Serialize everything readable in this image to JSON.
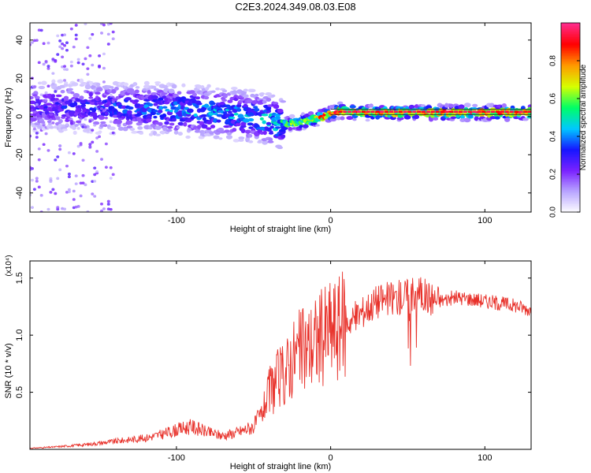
{
  "title": "C2E3.2024.349.08.03.E08",
  "colors": {
    "snr_line": "#e8312a",
    "frame": "#000000",
    "colormap": [
      "#ffffff",
      "#b9a6ff",
      "#7a22ff",
      "#1616ff",
      "#00c8ff",
      "#00ff66",
      "#d6ff00",
      "#ff9a00",
      "#ff0000",
      "#ff2c8c"
    ]
  },
  "chart_data": [
    {
      "type": "heatmap",
      "title": "C2E3.2024.349.08.03.E08",
      "xlabel": "Height of straight line (km)",
      "ylabel": "Frequency (Hz)",
      "xlim": [
        -195,
        130
      ],
      "ylim": [
        -50,
        49
      ],
      "xticks": [
        -100,
        0,
        100
      ],
      "yticks": [
        -40,
        -20,
        0,
        20,
        40
      ],
      "grid": false,
      "ridge": {
        "description_points_x": [
          -190,
          -150,
          -120,
          -90,
          -60,
          -40,
          -30,
          -20,
          -5,
          5,
          20,
          50,
          80,
          100,
          130
        ],
        "center_y": [
          5,
          5,
          4,
          3,
          1,
          -2,
          -4,
          -3,
          0,
          3,
          2,
          2,
          2,
          2,
          2
        ],
        "peak_amplitude": [
          0.3,
          0.35,
          0.4,
          0.45,
          0.45,
          0.5,
          0.55,
          0.75,
          0.85,
          0.95,
          0.85,
          0.8,
          0.85,
          0.9,
          0.85
        ]
      },
      "colorbar": {
        "label": "Normalized spectral amplitude",
        "range": [
          0.0,
          1.0
        ],
        "ticks": [
          "0.0",
          "0.2",
          "0.4",
          "0.6",
          "0.8"
        ]
      }
    },
    {
      "type": "line",
      "xlabel": "Height of straight line (km)",
      "ylabel": "SNR (10 * v/v)",
      "multiplier": "(x10⁴)",
      "xlim": [
        -195,
        130
      ],
      "ylim": [
        0,
        1.65
      ],
      "xticks": [
        -100,
        0,
        100
      ],
      "yticks": [
        0.5,
        1.0,
        1.5
      ],
      "ytick_labels": [
        "0.5",
        "1.0",
        "1.5"
      ],
      "grid": false,
      "series": [
        {
          "x": [
            -195,
            -180,
            -160,
            -140,
            -120,
            -110,
            -100,
            -90,
            -80,
            -70,
            -60,
            -50,
            -45,
            -40,
            -35,
            -30,
            -25,
            -20,
            -15,
            -10,
            -5,
            0,
            10,
            20,
            30,
            40,
            50,
            55,
            60,
            65,
            70,
            80,
            90,
            100,
            110,
            120,
            130
          ],
          "values": [
            0.01,
            0.02,
            0.04,
            0.07,
            0.1,
            0.13,
            0.17,
            0.2,
            0.15,
            0.12,
            0.15,
            0.2,
            0.3,
            0.5,
            0.6,
            0.65,
            0.8,
            0.85,
            0.9,
            0.95,
            1.0,
            1.05,
            1.1,
            1.2,
            1.3,
            1.32,
            1.35,
            1.4,
            1.35,
            1.32,
            1.3,
            1.33,
            1.32,
            1.3,
            1.28,
            1.26,
            1.22
          ]
        }
      ]
    }
  ]
}
